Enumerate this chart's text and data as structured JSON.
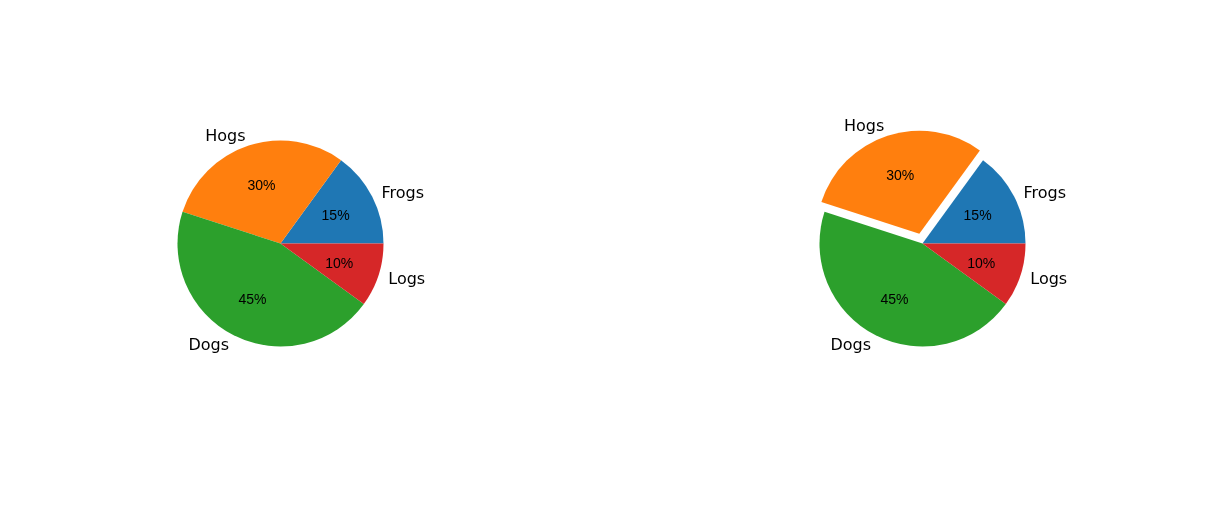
{
  "chart_data": [
    {
      "type": "pie",
      "categories": [
        "Frogs",
        "Hogs",
        "Dogs",
        "Logs"
      ],
      "values": [
        15,
        30,
        45,
        10
      ],
      "colors": [
        "#1f77b4",
        "#ff7f0e",
        "#2ca02c",
        "#d62728"
      ],
      "value_labels": [
        "15%",
        "30%",
        "45%",
        "10%"
      ]
    },
    {
      "type": "pie",
      "categories": [
        "Frogs",
        "Hogs",
        "Dogs",
        "Logs"
      ],
      "values": [
        15,
        30,
        45,
        10
      ],
      "colors": [
        "#1f77b4",
        "#ff7f0e",
        "#2ca02c",
        "#d62728"
      ],
      "value_labels": [
        "15%",
        "30%",
        "45%",
        "10%"
      ]
    }
  ]
}
